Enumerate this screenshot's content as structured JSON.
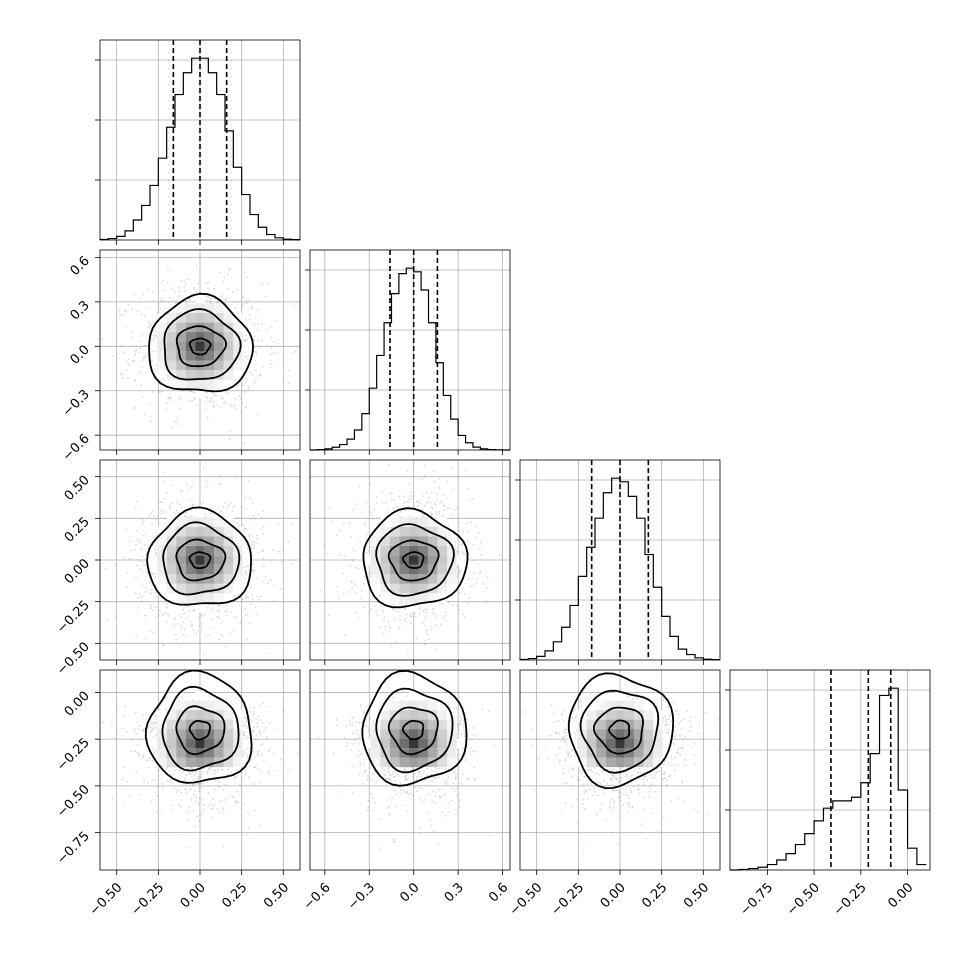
{
  "chart_data": {
    "type": "corner",
    "parameters": 4,
    "grid": true,
    "point_color": "#808080",
    "contour_color": "#000000",
    "density_cmap": [
      "#ffffff",
      "#000000"
    ],
    "axes": [
      {
        "range": [
          -0.6,
          0.6
        ],
        "ticks": [
          -0.5,
          -0.25,
          0.0,
          0.25,
          0.5
        ],
        "tick_labels": [
          "−0.50",
          "−0.25",
          "0.00",
          "0.25",
          "0.50"
        ],
        "hist_bins": [
          -0.6,
          -0.55,
          -0.5,
          -0.45,
          -0.4,
          -0.35,
          -0.3,
          -0.25,
          -0.2,
          -0.15,
          -0.1,
          -0.05,
          0.0,
          0.05,
          0.1,
          0.15,
          0.2,
          0.25,
          0.3,
          0.35,
          0.4,
          0.45,
          0.5,
          0.55,
          0.6
        ],
        "hist_counts": [
          0.3,
          0.8,
          2.0,
          5.0,
          11.0,
          19.0,
          30.0,
          45.0,
          62.0,
          80.0,
          92.0,
          100.0,
          100.0,
          92.0,
          80.0,
          60.0,
          40.0,
          25.0,
          14.0,
          7.0,
          3.0,
          1.2,
          0.4,
          0.2
        ],
        "quantiles": [
          -0.16,
          0.0,
          0.16
        ],
        "center": [
          0.0
        ]
      },
      {
        "range": [
          -0.7,
          0.65
        ],
        "ticks": [
          -0.6,
          -0.3,
          0.0,
          0.3,
          0.6
        ],
        "tick_labels": [
          "−0.6",
          "−0.3",
          "0.0",
          "0.3",
          "0.6"
        ],
        "hist_bins": [
          -0.7,
          -0.65,
          -0.6,
          -0.55,
          -0.5,
          -0.45,
          -0.4,
          -0.35,
          -0.3,
          -0.25,
          -0.2,
          -0.15,
          -0.1,
          -0.05,
          0.0,
          0.05,
          0.1,
          0.15,
          0.2,
          0.25,
          0.3,
          0.35,
          0.4,
          0.45,
          0.5,
          0.55,
          0.6,
          0.65
        ],
        "hist_counts": [
          0.0,
          0.2,
          0.6,
          1.5,
          3.0,
          6.0,
          11.0,
          20.0,
          34.0,
          52.0,
          70.0,
          86.0,
          97.0,
          100.0,
          98.0,
          88.0,
          70.0,
          48.0,
          30.0,
          17.0,
          8.0,
          4.0,
          1.6,
          0.6,
          0.2,
          0.1,
          0.0
        ],
        "quantiles": [
          -0.16,
          0.0,
          0.16
        ],
        "center": [
          0.0
        ]
      },
      {
        "range": [
          -0.6,
          0.6
        ],
        "ticks": [
          -0.5,
          -0.25,
          0.0,
          0.25,
          0.5
        ],
        "tick_labels": [
          "−0.50",
          "−0.25",
          "0.00",
          "0.25",
          "0.50"
        ],
        "hist_bins": [
          -0.6,
          -0.55,
          -0.5,
          -0.45,
          -0.4,
          -0.35,
          -0.3,
          -0.25,
          -0.2,
          -0.15,
          -0.1,
          -0.05,
          0.0,
          0.05,
          0.1,
          0.15,
          0.2,
          0.25,
          0.3,
          0.35,
          0.4,
          0.45,
          0.5,
          0.55,
          0.6
        ],
        "hist_counts": [
          0.3,
          0.8,
          2.0,
          5.0,
          10.0,
          18.0,
          30.0,
          46.0,
          62.0,
          78.0,
          92.0,
          100.0,
          98.0,
          90.0,
          78.0,
          58.0,
          40.0,
          24.0,
          13.0,
          6.0,
          3.0,
          1.2,
          0.4,
          0.2
        ],
        "quantiles": [
          -0.17,
          0.0,
          0.17
        ],
        "center": [
          0.0
        ]
      },
      {
        "range": [
          -0.95,
          0.12
        ],
        "ticks": [
          -0.75,
          -0.5,
          -0.25,
          0.0
        ],
        "tick_labels": [
          "−0.75",
          "−0.50",
          "−0.25",
          "0.00"
        ],
        "hist_bins": [
          -0.95,
          -0.9,
          -0.85,
          -0.8,
          -0.75,
          -0.7,
          -0.65,
          -0.6,
          -0.55,
          -0.5,
          -0.45,
          -0.4,
          -0.35,
          -0.3,
          -0.25,
          -0.2,
          -0.15,
          -0.1,
          -0.05,
          0.0,
          0.05,
          0.1
        ],
        "hist_counts": [
          0.0,
          0.3,
          0.8,
          1.5,
          3.0,
          5.5,
          9.0,
          14.0,
          20.0,
          27.0,
          34.0,
          38.0,
          38.0,
          40.0,
          48.0,
          64.0,
          96.0,
          100.0,
          44.0,
          12.0,
          3.0
        ],
        "quantiles": [
          -0.41,
          -0.21,
          -0.09
        ],
        "center": [
          -0.2
        ]
      }
    ]
  }
}
